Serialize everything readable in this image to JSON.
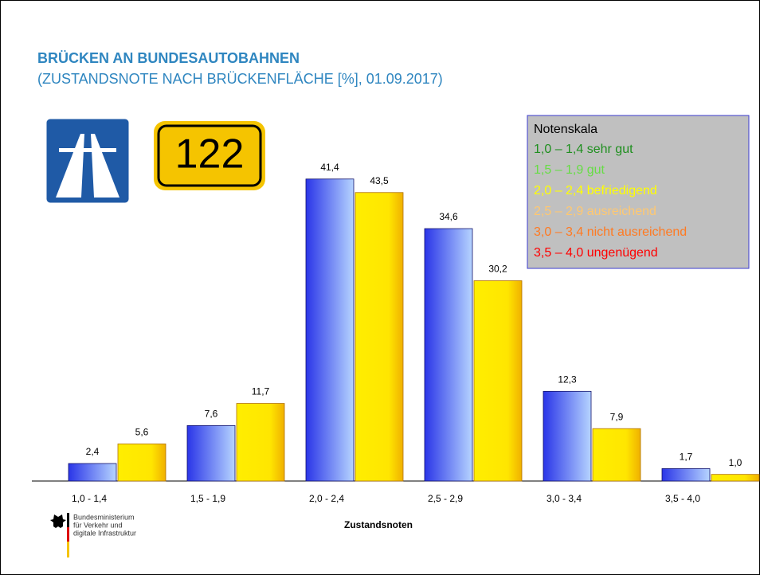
{
  "chart_data": {
    "type": "bar",
    "title": "BRÜCKEN AN BUNDESAUTOBAHNEN",
    "subtitle": "(ZUSTANDSNOTE NACH BRÜCKENFLÄCHE [%], 01.09.2017)",
    "x_label": "Zustandsnoten",
    "categories": [
      "1,0 - 1,4",
      "1,5 - 1,9",
      "2,0 - 2,4",
      "2,5 - 2,9",
      "3,0 - 3,4",
      "3,5 - 4,0"
    ],
    "series": [
      {
        "color": "#3a4cf0",
        "values": [
          2.4,
          7.6,
          41.4,
          34.6,
          12.3,
          1.7
        ],
        "value_labels": [
          "2,4",
          "7,6",
          "41,4",
          "34,6",
          "12,3",
          "1,7"
        ]
      },
      {
        "color": "#ffe800",
        "axis": "y2",
        "values": [
          5.6,
          11.7,
          43.5,
          30.2,
          7.9,
          1.0
        ],
        "value_labels": [
          "5,6",
          "11,7",
          "43,5",
          "30,2",
          "7,9",
          "1,0"
        ]
      }
    ],
    "ylim": [
      0,
      50
    ],
    "y2lim": [
      0,
      55
    ],
    "legend_box": {
      "title": "Notenskala",
      "items": [
        {
          "text": "1,0 – 1,4 sehr gut",
          "color": "#1f8f1f"
        },
        {
          "text": "1,5 – 1,9 gut",
          "color": "#66dd44"
        },
        {
          "text": "2,0 – 2,4 befriedigend",
          "color": "#ffff00"
        },
        {
          "text": "2,5 – 2,9 ausreichend",
          "color": "#ffc870"
        },
        {
          "text": "3,0 – 3,4 nicht ausreichend",
          "color": "#ff7a22"
        },
        {
          "text": "3,5 – 4,0 ungenügend",
          "color": "#ff0000"
        }
      ]
    }
  },
  "road_sign": "122",
  "logo": [
    "Bundesministerium",
    "für Verkehr und",
    "digitale Infrastruktur"
  ]
}
